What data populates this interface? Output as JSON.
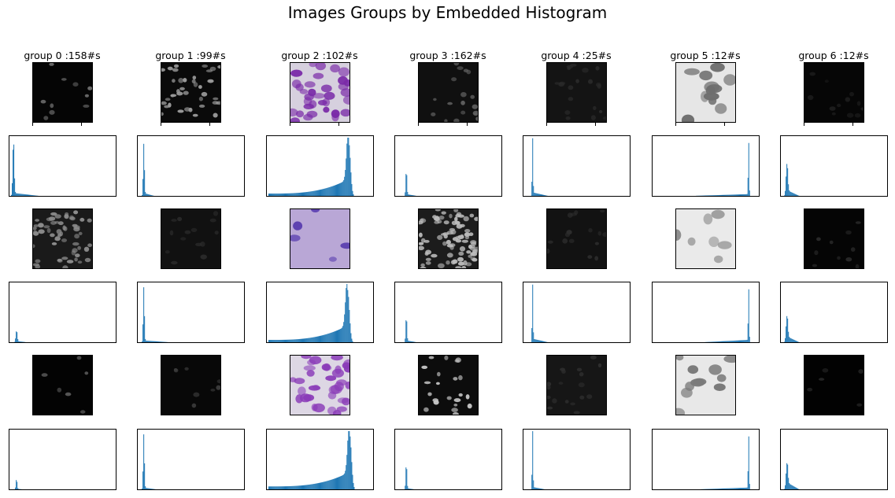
{
  "title": "Images Groups by Embedded Histogram",
  "chart_data": {
    "type": "bar",
    "layout": "grid of 7 columns x 3 image/histogram pairs",
    "bar_color": "#1f77b4",
    "groups": [
      {
        "label": "group 0 :158#s",
        "images": [
          {
            "style": "dark",
            "bg": "#050505",
            "nuclei": "#6a6a6a",
            "density": 10,
            "seed": 3
          },
          {
            "style": "dark",
            "bg": "#1a1a1a",
            "nuclei": "#8c8c8c",
            "density": 60,
            "seed": 7
          },
          {
            "style": "dark",
            "bg": "#030303",
            "nuclei": "#5a5a5a",
            "density": 6,
            "seed": 11
          }
        ],
        "histograms": [
          {
            "peak": 0.02,
            "width": 0.01,
            "amp": 0.95,
            "tail": 0.05,
            "tail_len": 0.25
          },
          {
            "peak": 0.05,
            "width": 0.01,
            "amp": 0.2,
            "tail": 0.02,
            "tail_len": 0.1
          },
          {
            "peak": 0.05,
            "width": 0.008,
            "amp": 0.18,
            "tail": 0.01,
            "tail_len": 0.06
          }
        ]
      },
      {
        "label": "group 1 :99#s",
        "images": [
          {
            "style": "dark",
            "bg": "#0a0a0a",
            "nuclei": "#9a9a9a",
            "density": 40,
            "seed": 13
          },
          {
            "style": "dark",
            "bg": "#111111",
            "nuclei": "#2c2c2c",
            "density": 14,
            "seed": 17
          },
          {
            "style": "dark",
            "bg": "#080808",
            "nuclei": "#3c3c3c",
            "density": 8,
            "seed": 19
          }
        ],
        "histograms": [
          {
            "peak": 0.04,
            "width": 0.008,
            "amp": 0.9,
            "tail": 0.05,
            "tail_len": 0.1
          },
          {
            "peak": 0.04,
            "width": 0.008,
            "amp": 0.95,
            "tail": 0.03,
            "tail_len": 0.25
          },
          {
            "peak": 0.04,
            "width": 0.008,
            "amp": 0.95,
            "tail": 0.03,
            "tail_len": 0.12
          }
        ]
      },
      {
        "label": "group 2 :102#s",
        "images": [
          {
            "style": "purple",
            "bg": "#d6d0de",
            "nuclei": "#7a2aa8",
            "density": 34,
            "seed": 23
          },
          {
            "style": "purple",
            "bg": "#b9a7d6",
            "nuclei": "#5b3fb0",
            "density": 5,
            "seed": 29
          },
          {
            "style": "purple",
            "bg": "#ddd7e4",
            "nuclei": "#8a3bb8",
            "density": 36,
            "seed": 31
          }
        ],
        "histograms": [
          {
            "type": "skew",
            "peak": 0.78,
            "amp": 0.95,
            "base": 0.04
          },
          {
            "type": "skew",
            "peak": 0.77,
            "amp": 0.9,
            "base": 0.04
          },
          {
            "type": "skew",
            "peak": 0.79,
            "amp": 0.95,
            "base": 0.05
          }
        ]
      },
      {
        "label": "group 3 :162#s",
        "images": [
          {
            "style": "dark",
            "bg": "#101010",
            "nuclei": "#606060",
            "density": 18,
            "seed": 37
          },
          {
            "style": "dark",
            "bg": "#1c1c1c",
            "nuclei": "#bcbcbc",
            "density": 90,
            "seed": 41
          },
          {
            "style": "dark",
            "bg": "#0c0c0c",
            "nuclei": "#c8c8c8",
            "density": 22,
            "seed": 43
          }
        ],
        "histograms": [
          {
            "peak": 0.09,
            "width": 0.008,
            "amp": 0.45,
            "tail": 0.03,
            "tail_len": 0.1
          },
          {
            "peak": 0.09,
            "width": 0.008,
            "amp": 0.45,
            "tail": 0.03,
            "tail_len": 0.1
          },
          {
            "peak": 0.09,
            "width": 0.008,
            "amp": 0.45,
            "tail": 0.02,
            "tail_len": 0.08
          }
        ]
      },
      {
        "label": "group 4 :25#s",
        "images": [
          {
            "style": "dark",
            "bg": "#141414",
            "nuclei": "#2a2a2a",
            "density": 20,
            "seed": 47
          },
          {
            "style": "dark",
            "bg": "#121212",
            "nuclei": "#2c2c2c",
            "density": 16,
            "seed": 53
          },
          {
            "style": "dark",
            "bg": "#161616",
            "nuclei": "#2e2e2e",
            "density": 18,
            "seed": 59
          }
        ],
        "histograms": [
          {
            "peak": 0.07,
            "width": 0.006,
            "amp": 0.95,
            "tail": 0.06,
            "tail_len": 0.15
          },
          {
            "peak": 0.07,
            "width": 0.006,
            "amp": 0.95,
            "tail": 0.06,
            "tail_len": 0.15
          },
          {
            "peak": 0.07,
            "width": 0.006,
            "amp": 0.98,
            "tail": 0.04,
            "tail_len": 0.12
          }
        ]
      },
      {
        "label": "group 5 :12#s",
        "images": [
          {
            "style": "gray",
            "bg": "#e6e6e6",
            "nuclei": "#6e6e6e",
            "density": 12,
            "seed": 61
          },
          {
            "style": "gray",
            "bg": "#eaeaea",
            "nuclei": "#8a8a8a",
            "density": 7,
            "seed": 67
          },
          {
            "style": "gray",
            "bg": "#e8e8e8",
            "nuclei": "#7a7a7a",
            "density": 11,
            "seed": 71
          }
        ],
        "histograms": [
          {
            "peak": 0.92,
            "width": 0.006,
            "amp": 0.95,
            "tail": 0.03,
            "tail_len": 0.55,
            "left": true
          },
          {
            "peak": 0.92,
            "width": 0.006,
            "amp": 0.95,
            "tail": 0.04,
            "tail_len": 0.45,
            "left": true
          },
          {
            "peak": 0.92,
            "width": 0.006,
            "amp": 0.95,
            "tail": 0.03,
            "tail_len": 0.5,
            "left": true
          }
        ]
      },
      {
        "label": "group 6 :12#s",
        "images": [
          {
            "style": "dark",
            "bg": "#060606",
            "nuclei": "#1e1e1e",
            "density": 12,
            "seed": 73
          },
          {
            "style": "dark",
            "bg": "#050505",
            "nuclei": "#2a2a2a",
            "density": 10,
            "seed": 79
          },
          {
            "style": "dark",
            "bg": "#020202",
            "nuclei": "#2a2a2a",
            "density": 5,
            "seed": 83
          }
        ],
        "histograms": [
          {
            "peak": 0.04,
            "width": 0.012,
            "amp": 0.55,
            "tail": 0.1,
            "tail_len": 0.12
          },
          {
            "peak": 0.04,
            "width": 0.012,
            "amp": 0.45,
            "tail": 0.1,
            "tail_len": 0.12
          },
          {
            "peak": 0.04,
            "width": 0.012,
            "amp": 0.45,
            "tail": 0.12,
            "tail_len": 0.12
          }
        ]
      }
    ]
  }
}
